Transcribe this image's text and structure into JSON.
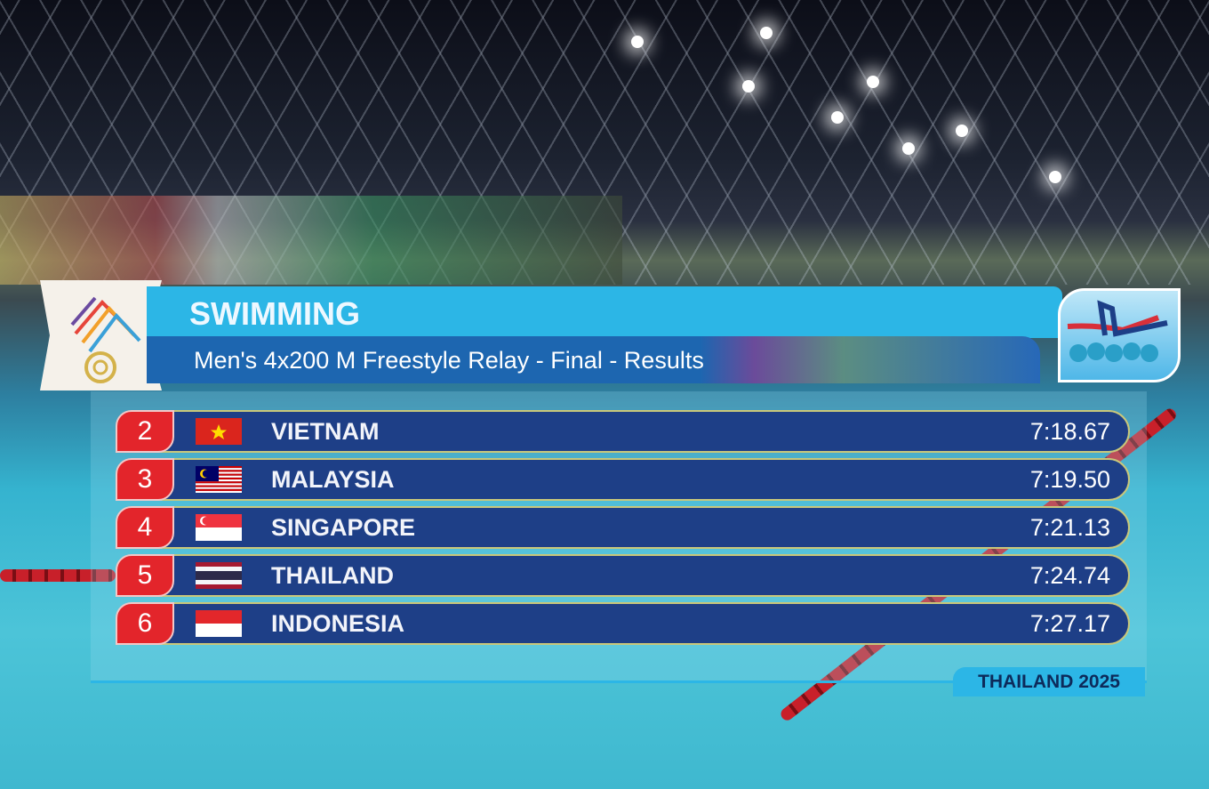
{
  "header": {
    "sport": "SWIMMING",
    "event": "Men's 4x200 M Freestyle Relay - Final - Results"
  },
  "results": [
    {
      "rank": "2",
      "country": "VIETNAM",
      "time": "7:18.67",
      "flag": "vietnam-flag"
    },
    {
      "rank": "3",
      "country": "MALAYSIA",
      "time": "7:19.50",
      "flag": "malaysia-flag"
    },
    {
      "rank": "4",
      "country": "SINGAPORE",
      "time": "7:21.13",
      "flag": "singapore-flag"
    },
    {
      "rank": "5",
      "country": "THAILAND",
      "time": "7:24.74",
      "flag": "thailand-flag"
    },
    {
      "rank": "6",
      "country": "INDONESIA",
      "time": "7:27.17",
      "flag": "indonesia-flag"
    }
  ],
  "footer": {
    "label": "THAILAND 2025"
  },
  "colors": {
    "header_light": "#2cb6e6",
    "header_dark": "#1d66b0",
    "row": "#1e3f87",
    "rank": "#e3252b"
  }
}
